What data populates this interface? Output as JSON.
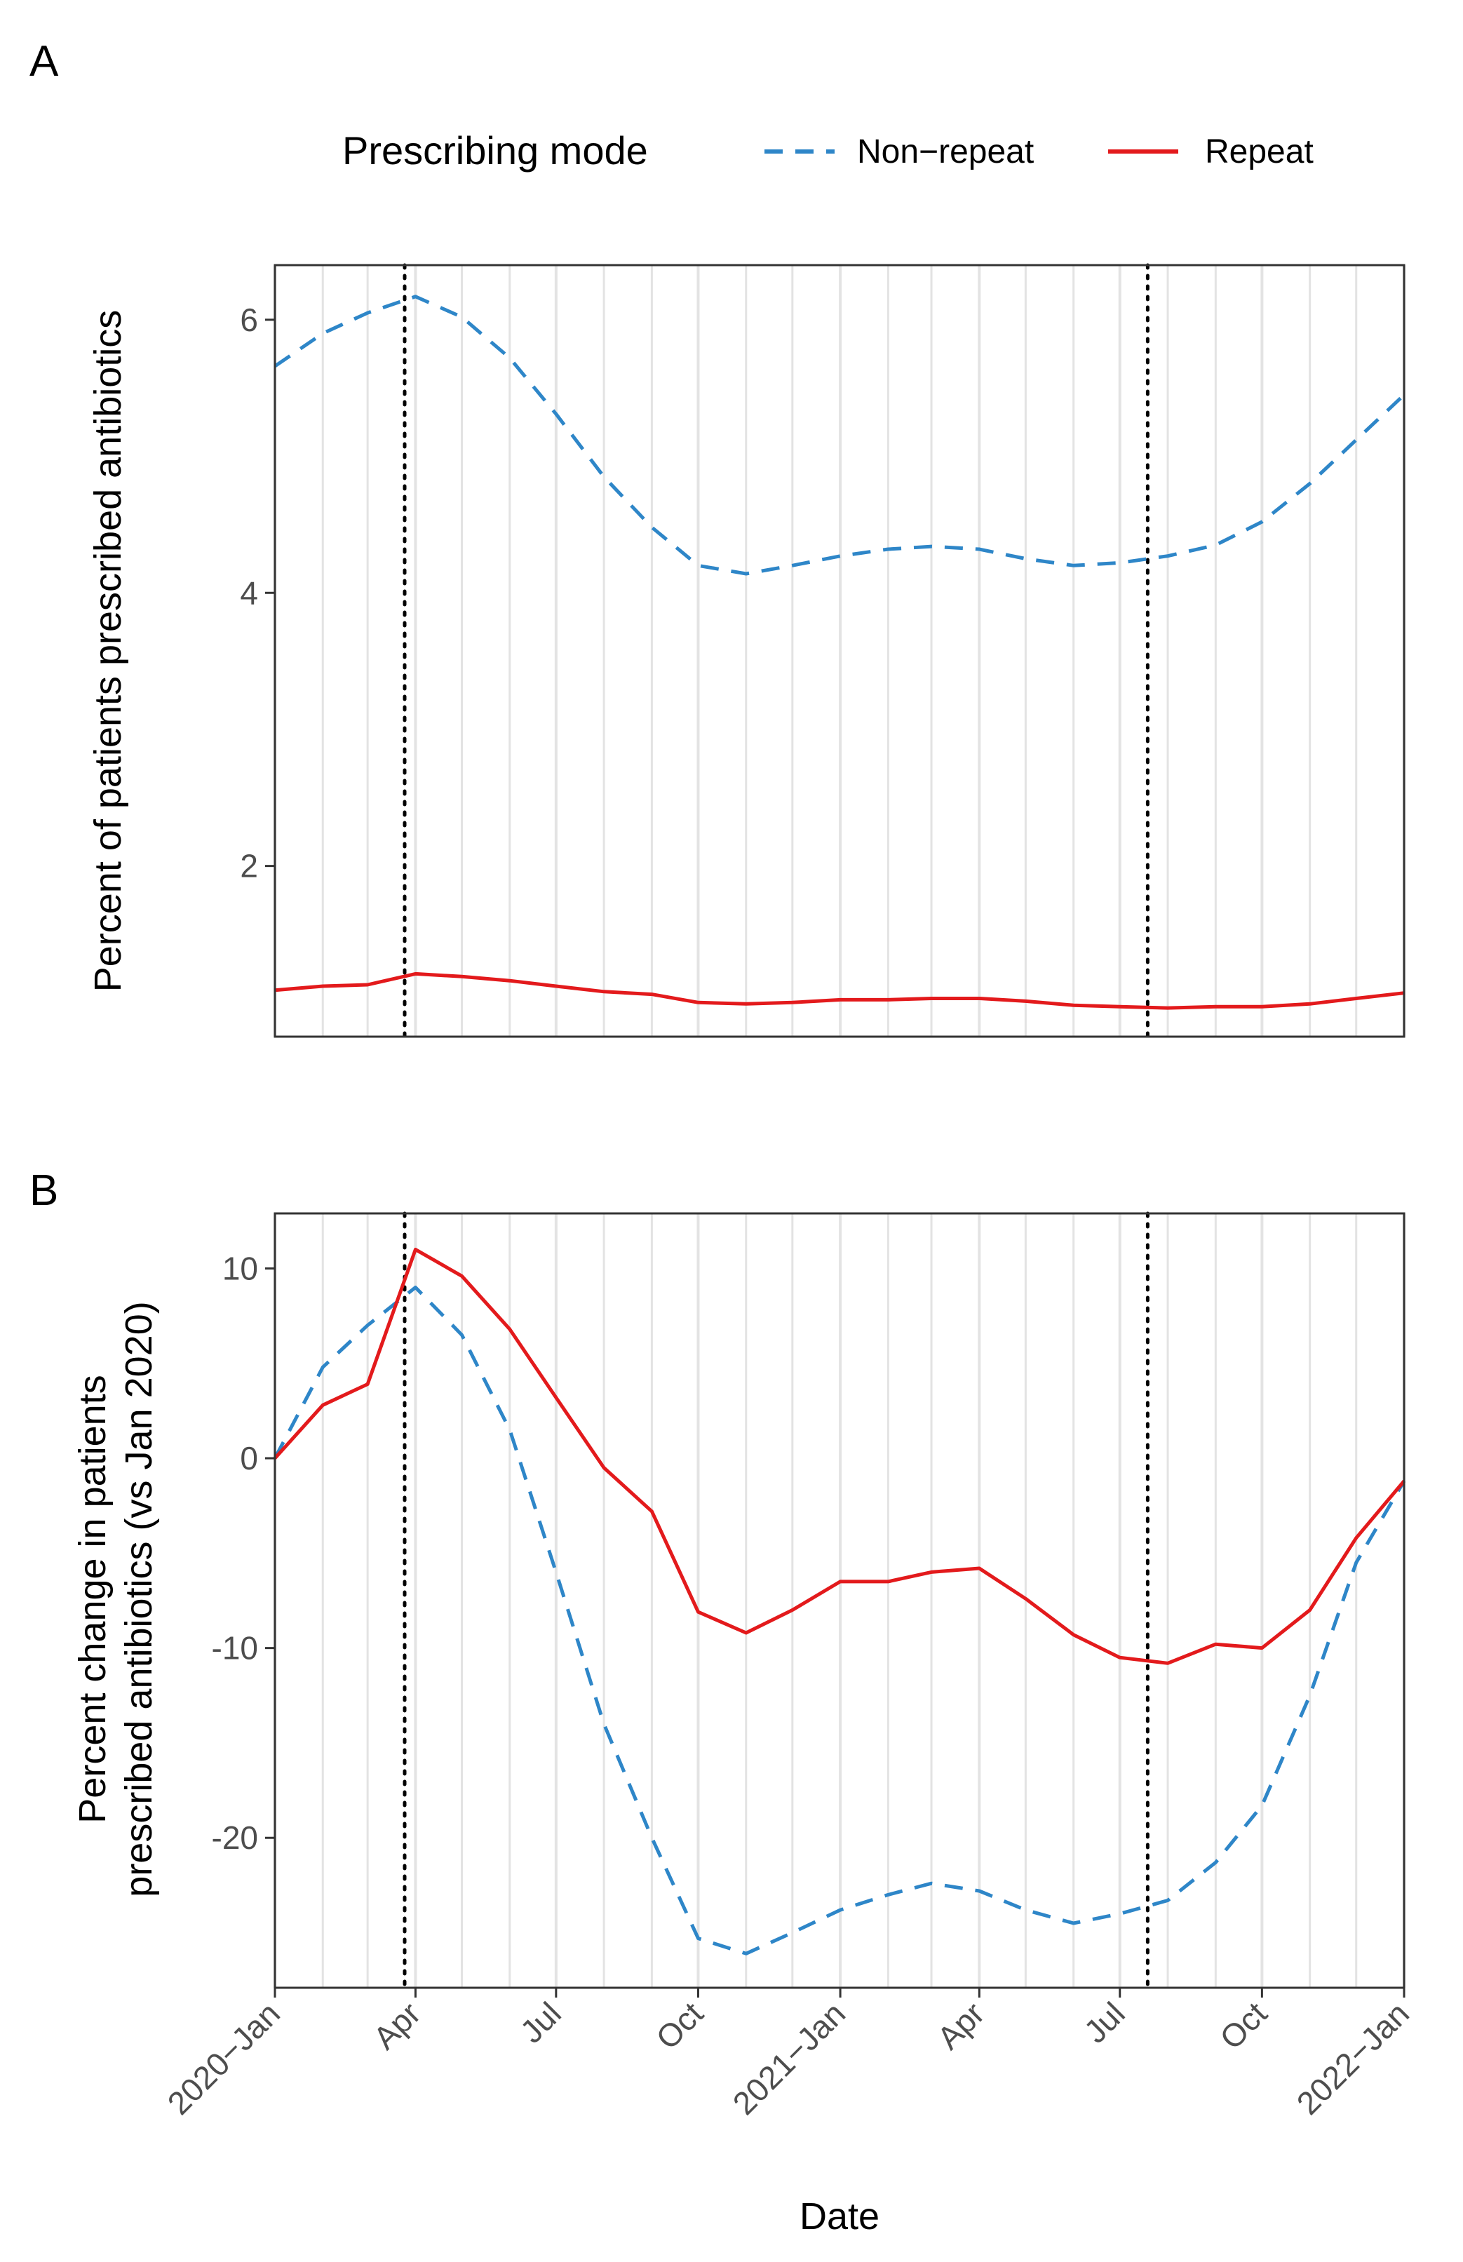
{
  "legend": {
    "title": "Prescribing mode",
    "items": [
      {
        "label": "Non−repeat",
        "color": "#2E86C8",
        "dash": true
      },
      {
        "label": "Repeat",
        "color": "#E31A1C",
        "dash": false
      }
    ]
  },
  "chart_data": [
    {
      "type": "line",
      "panel_tag": "A",
      "ylabel": [
        "Percent of patients prescribed antibiotics"
      ],
      "xlabel": "",
      "ylim": [
        0.75,
        6.4
      ],
      "yticks": [
        2,
        4,
        6
      ],
      "grid": "vertical monthly",
      "reference_lines": [
        "2020-03-25",
        "2021-07-19"
      ],
      "x": [
        "2020-01-01",
        "2020-02-01",
        "2020-03-01",
        "2020-04-01",
        "2020-05-01",
        "2020-06-01",
        "2020-07-01",
        "2020-08-01",
        "2020-09-01",
        "2020-10-01",
        "2020-11-01",
        "2020-12-01",
        "2021-01-01",
        "2021-02-01",
        "2021-03-01",
        "2021-04-01",
        "2021-05-01",
        "2021-06-01",
        "2021-07-01",
        "2021-08-01",
        "2021-09-01",
        "2021-10-01",
        "2021-11-01",
        "2021-12-01",
        "2022-01-01"
      ],
      "series": [
        {
          "name": "Non−repeat",
          "color": "#2E86C8",
          "dash": true,
          "values": [
            5.66,
            5.9,
            6.05,
            6.17,
            6.02,
            5.72,
            5.31,
            4.85,
            4.48,
            4.2,
            4.14,
            4.2,
            4.27,
            4.32,
            4.34,
            4.32,
            4.25,
            4.2,
            4.22,
            4.27,
            4.35,
            4.52,
            4.8,
            5.12,
            5.45
          ]
        },
        {
          "name": "Repeat",
          "color": "#E31A1C",
          "dash": false,
          "values": [
            1.09,
            1.12,
            1.13,
            1.21,
            1.19,
            1.16,
            1.12,
            1.08,
            1.06,
            1.0,
            0.99,
            1.0,
            1.02,
            1.02,
            1.03,
            1.03,
            1.01,
            0.98,
            0.97,
            0.96,
            0.97,
            0.97,
            0.99,
            1.03,
            1.07
          ]
        }
      ]
    },
    {
      "type": "line",
      "panel_tag": "B",
      "ylabel": [
        "Percent change in patients",
        "prescribed antibiotics (vs Jan 2020)"
      ],
      "xlabel": "Date",
      "ylim": [
        -27.9,
        12.9
      ],
      "yticks": [
        -20,
        -10,
        0,
        10
      ],
      "grid": "vertical monthly",
      "reference_lines": [
        "2020-03-25",
        "2021-07-19"
      ],
      "xticks": [
        {
          "date": "2020-01-01",
          "label": "2020−Jan"
        },
        {
          "date": "2020-04-01",
          "label": "Apr"
        },
        {
          "date": "2020-07-01",
          "label": "Jul"
        },
        {
          "date": "2020-10-01",
          "label": "Oct"
        },
        {
          "date": "2021-01-01",
          "label": "2021−Jan"
        },
        {
          "date": "2021-04-01",
          "label": "Apr"
        },
        {
          "date": "2021-07-01",
          "label": "Jul"
        },
        {
          "date": "2021-10-01",
          "label": "Oct"
        },
        {
          "date": "2022-01-01",
          "label": "2022−Jan"
        }
      ],
      "x": [
        "2020-01-01",
        "2020-02-01",
        "2020-03-01",
        "2020-04-01",
        "2020-05-01",
        "2020-06-01",
        "2020-07-01",
        "2020-08-01",
        "2020-09-01",
        "2020-10-01",
        "2020-11-01",
        "2020-12-01",
        "2021-01-01",
        "2021-02-01",
        "2021-03-01",
        "2021-04-01",
        "2021-05-01",
        "2021-06-01",
        "2021-07-01",
        "2021-08-01",
        "2021-09-01",
        "2021-10-01",
        "2021-11-01",
        "2021-12-01",
        "2022-01-01"
      ],
      "series": [
        {
          "name": "Non−repeat",
          "color": "#2E86C8",
          "dash": true,
          "values": [
            0.0,
            4.8,
            7.0,
            9.0,
            6.5,
            1.5,
            -6.0,
            -14.0,
            -20.0,
            -25.3,
            -26.1,
            -25.0,
            -23.8,
            -23.0,
            -22.4,
            -22.8,
            -23.8,
            -24.5,
            -24.0,
            -23.3,
            -21.3,
            -18.3,
            -12.5,
            -5.5,
            -1.2
          ]
        },
        {
          "name": "Repeat",
          "color": "#E31A1C",
          "dash": false,
          "values": [
            0.0,
            2.8,
            3.9,
            11.0,
            9.6,
            6.8,
            3.2,
            -0.5,
            -2.8,
            -8.1,
            -9.2,
            -8.0,
            -6.5,
            -6.5,
            -6.0,
            -5.8,
            -7.4,
            -9.3,
            -10.5,
            -10.8,
            -9.8,
            -10.0,
            -8.0,
            -4.2,
            -1.2
          ]
        }
      ]
    }
  ]
}
